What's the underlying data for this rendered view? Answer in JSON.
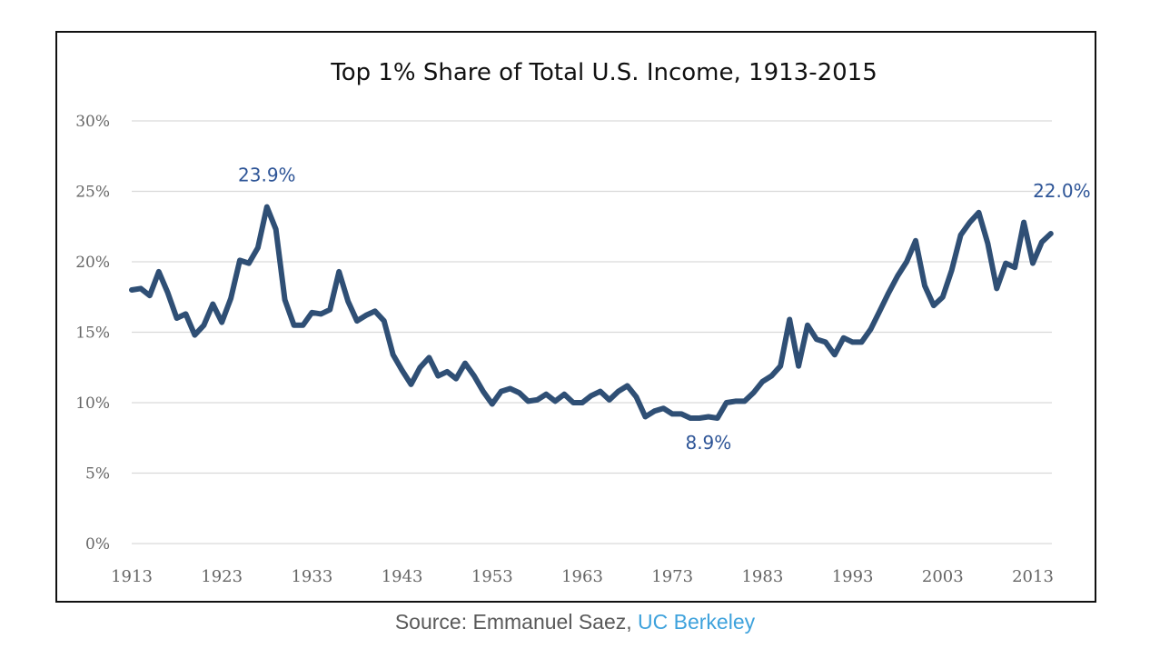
{
  "chart_data": {
    "type": "line",
    "title": "Top 1% Share of Total U.S. Income, 1913-2015",
    "xlabel": "",
    "ylabel": "",
    "ylim": [
      0,
      30
    ],
    "xlim": [
      1913,
      2015
    ],
    "grid": true,
    "legend": "none",
    "y_ticks": [
      "0%",
      "5%",
      "10%",
      "15%",
      "20%",
      "25%",
      "30%"
    ],
    "y_tick_values": [
      0,
      5,
      10,
      15,
      20,
      25,
      30
    ],
    "x_ticks": [
      "1913",
      "1923",
      "1933",
      "1943",
      "1953",
      "1963",
      "1973",
      "1983",
      "1993",
      "2003",
      "2013"
    ],
    "x_tick_values": [
      1913,
      1923,
      1933,
      1943,
      1953,
      1963,
      1973,
      1983,
      1993,
      2003,
      2013
    ],
    "series": [
      {
        "name": "Top 1% income share",
        "color": "#2f4f75",
        "x": [
          1913,
          1914,
          1915,
          1916,
          1917,
          1918,
          1919,
          1920,
          1921,
          1922,
          1923,
          1924,
          1925,
          1926,
          1927,
          1928,
          1929,
          1930,
          1931,
          1932,
          1933,
          1934,
          1935,
          1936,
          1937,
          1938,
          1939,
          1940,
          1941,
          1942,
          1943,
          1944,
          1945,
          1946,
          1947,
          1948,
          1949,
          1950,
          1951,
          1952,
          1953,
          1954,
          1955,
          1956,
          1957,
          1958,
          1959,
          1960,
          1961,
          1962,
          1963,
          1964,
          1965,
          1966,
          1967,
          1968,
          1969,
          1970,
          1971,
          1972,
          1973,
          1974,
          1975,
          1976,
          1977,
          1978,
          1979,
          1980,
          1981,
          1982,
          1983,
          1984,
          1985,
          1986,
          1987,
          1988,
          1989,
          1990,
          1991,
          1992,
          1993,
          1994,
          1995,
          1996,
          1997,
          1998,
          1999,
          2000,
          2001,
          2002,
          2003,
          2004,
          2005,
          2006,
          2007,
          2008,
          2009,
          2010,
          2011,
          2012,
          2013,
          2014,
          2015
        ],
        "values": [
          18.0,
          18.1,
          17.6,
          19.3,
          17.8,
          16.0,
          16.3,
          14.8,
          15.5,
          17.0,
          15.7,
          17.4,
          20.1,
          19.9,
          21.0,
          23.9,
          22.3,
          17.3,
          15.5,
          15.5,
          16.4,
          16.3,
          16.6,
          19.3,
          17.2,
          15.8,
          16.2,
          16.5,
          15.8,
          13.4,
          12.3,
          11.3,
          12.5,
          13.2,
          11.9,
          12.2,
          11.7,
          12.8,
          11.9,
          10.8,
          9.9,
          10.8,
          11.0,
          10.7,
          10.1,
          10.2,
          10.6,
          10.1,
          10.6,
          10.0,
          10.0,
          10.5,
          10.8,
          10.2,
          10.8,
          11.2,
          10.4,
          9.0,
          9.4,
          9.6,
          9.2,
          9.2,
          8.9,
          8.9,
          9.0,
          8.9,
          10.0,
          10.1,
          10.1,
          10.7,
          11.5,
          11.9,
          12.6,
          15.9,
          12.6,
          15.5,
          14.5,
          14.3,
          13.4,
          14.6,
          14.3,
          14.3,
          15.2,
          16.5,
          17.8,
          19.0,
          20.0,
          21.5,
          18.3,
          16.9,
          17.5,
          19.4,
          21.9,
          22.8,
          23.5,
          21.3,
          18.1,
          19.9,
          19.6,
          22.8,
          19.9,
          21.4,
          22.0
        ]
      }
    ],
    "annotations": [
      {
        "text": "23.9%",
        "x": 1928,
        "y": 23.9,
        "position": "above"
      },
      {
        "text": "8.9%",
        "x": 1977,
        "y": 8.9,
        "position": "below"
      },
      {
        "text": "22.0%",
        "x": 2015,
        "y": 22.0,
        "position": "above-right"
      }
    ]
  },
  "source": {
    "prefix": "Source: Emmanuel Saez, ",
    "link_text": "UC Berkeley",
    "link_color": "#3ea2dc"
  }
}
